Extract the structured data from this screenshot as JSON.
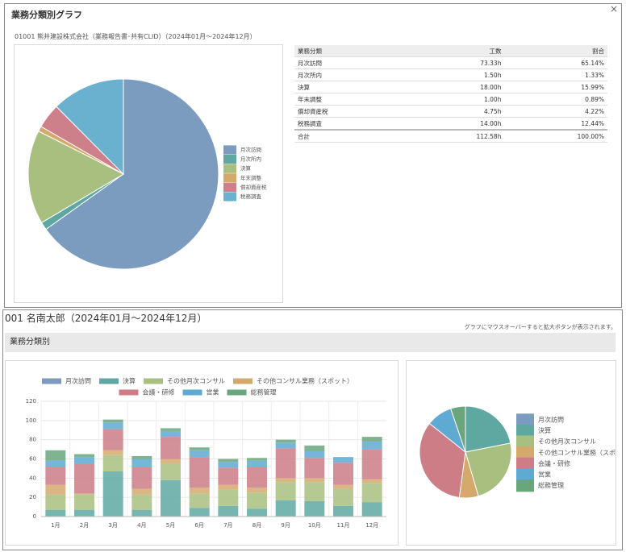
{
  "dialog": {
    "title": "業務分類別グラフ",
    "close": "×",
    "subtitle": "01001 熊井建設株式会社（業務報告書･共有CLID）（2024年01月～2024年12月）"
  },
  "table": {
    "headers": [
      "業務分類",
      "工数",
      "割合"
    ],
    "rows": [
      [
        "月次訪問",
        "73.33h",
        "65.14%"
      ],
      [
        "月次所内",
        "1.50h",
        "1.33%"
      ],
      [
        "決算",
        "18.00h",
        "15.99%"
      ],
      [
        "年末調整",
        "1.00h",
        "0.89%"
      ],
      [
        "償却資産税",
        "4.75h",
        "4.22%"
      ],
      [
        "税務調査",
        "14.00h",
        "12.44%"
      ]
    ],
    "total": [
      "合計",
      "112.58h",
      "100.00%"
    ]
  },
  "section": {
    "title": "001 名南太郎（2024年01月～2024年12月）",
    "hint": "グラフにマウスオーバーすると拡大ボタンが表示されます。",
    "heading": "業務分類別"
  },
  "chart_data": [
    {
      "type": "pie",
      "categories": [
        "月次訪問",
        "月次所内",
        "決算",
        "年末調整",
        "償却資産税",
        "税務調査"
      ],
      "values": [
        65.14,
        1.33,
        15.99,
        0.89,
        4.22,
        12.44
      ],
      "colors": [
        "#7b9bbf",
        "#5fa8a2",
        "#a9bf80",
        "#d5a96c",
        "#cd8089",
        "#6ab1cf"
      ]
    },
    {
      "type": "stacked_bar",
      "categories": [
        "1月",
        "2月",
        "3月",
        "4月",
        "5月",
        "6月",
        "7月",
        "8月",
        "9月",
        "10月",
        "11月",
        "12月"
      ],
      "ylim": [
        0,
        120
      ],
      "yticks": [
        0,
        20,
        40,
        60,
        80,
        100,
        120
      ],
      "grid": true,
      "series": [
        {
          "name": "月次訪問",
          "color": "#7b9bbf",
          "values": [
            0,
            0,
            0,
            0,
            0,
            0,
            0,
            0,
            0,
            0,
            0,
            0
          ]
        },
        {
          "name": "決算",
          "color": "#5fa8a2",
          "values": [
            7,
            7,
            47,
            7,
            38,
            9,
            11,
            8,
            17,
            16,
            11,
            15
          ]
        },
        {
          "name": "その他月次コンサル",
          "color": "#a9bf80",
          "values": [
            16,
            16,
            17,
            16,
            17,
            15,
            17,
            17,
            19,
            20,
            18,
            20
          ]
        },
        {
          "name": "その他コンサル業務（スポット）",
          "color": "#d5a96c",
          "values": [
            10,
            1,
            5,
            6,
            5,
            6,
            5,
            5,
            4,
            4,
            4,
            4
          ]
        },
        {
          "name": "会議・研修",
          "color": "#cd7d86",
          "values": [
            19,
            31,
            22,
            23,
            23,
            32,
            18,
            22,
            31,
            21,
            23,
            31
          ]
        },
        {
          "name": "営業",
          "color": "#5eaad2",
          "values": [
            6,
            7,
            7,
            8,
            6,
            7,
            6,
            6,
            6,
            7,
            6,
            8
          ]
        },
        {
          "name": "総務管理",
          "color": "#6aa67c",
          "values": [
            11,
            3,
            3,
            3,
            3,
            3,
            3,
            3,
            3,
            6,
            0,
            5
          ]
        }
      ]
    },
    {
      "type": "pie",
      "categories": [
        "月次訪問",
        "決算",
        "その他月次コンサル",
        "その他コンサル業務（スポット）",
        "会議・研修",
        "営業",
        "総務管理"
      ],
      "values": [
        0,
        193,
        208,
        59,
        296,
        80,
        46
      ],
      "colors": [
        "#7b9bbf",
        "#5fa8a2",
        "#a9bf80",
        "#d5a96c",
        "#cd7d86",
        "#5eaad2",
        "#6aa67c"
      ]
    }
  ]
}
